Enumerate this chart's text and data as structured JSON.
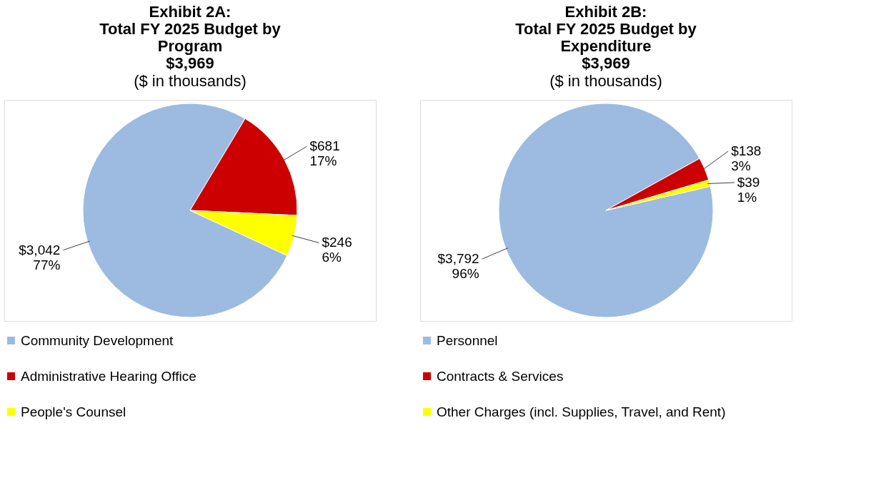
{
  "chart_data": [
    {
      "type": "pie",
      "title": "Exhibit 2A:\nTotal FY 2025 Budget by\nProgram\n$3,969",
      "subtitle": "($ in thousands)",
      "categories": [
        "Community Development",
        "Administrative Hearing Office",
        "People's Counsel"
      ],
      "values": [
        3042,
        681,
        246
      ],
      "colors": [
        "#9dbbe0",
        "#cc0000",
        "#ffff00"
      ],
      "value_labels": [
        "$3,042\n77%",
        "$681\n17%",
        "$246\n6%"
      ],
      "legend": "bottom left"
    },
    {
      "type": "pie",
      "title": "Exhibit 2B:\nTotal FY 2025 Budget by\nExpenditure\n$3,969",
      "subtitle": "($ in thousands)",
      "categories": [
        "Personnel",
        "Contracts & Services",
        "Other Charges (incl. Supplies, Travel, and Rent)"
      ],
      "values": [
        3792,
        138,
        39
      ],
      "colors": [
        "#9dbbe0",
        "#cc0000",
        "#ffff00"
      ],
      "value_labels": [
        "$3,792\n96%",
        "$138\n3%",
        "$39\n1%"
      ],
      "legend": "bottom left"
    }
  ]
}
